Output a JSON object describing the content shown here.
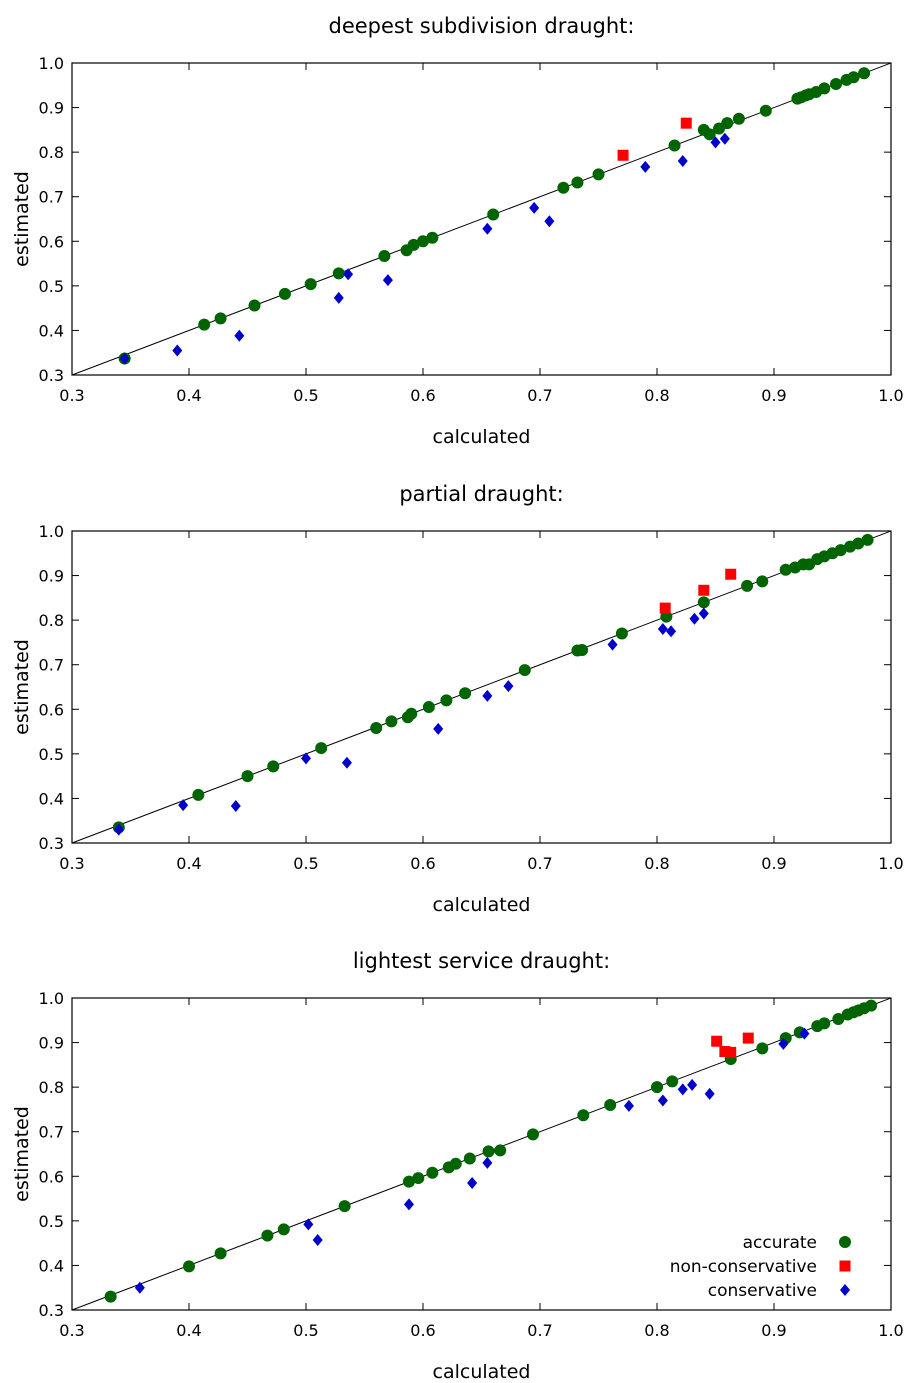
{
  "colors": {
    "accurate": "#006400",
    "non_conservative": "#ff0000",
    "conservative": "#0000cc",
    "axis": "#000000",
    "diagonal": "#000000"
  },
  "chart_data": [
    {
      "type": "scatter",
      "title": "deepest subdivision draught:",
      "xlabel": "calculated",
      "ylabel": "estimated",
      "xlim": [
        0.3,
        1.0
      ],
      "ylim": [
        0.3,
        1.0
      ],
      "xticks": [
        "0.3",
        "0.4",
        "0.5",
        "0.6",
        "0.7",
        "0.8",
        "0.9",
        "1.0"
      ],
      "yticks": [
        "0.3",
        "0.4",
        "0.5",
        "0.6",
        "0.7",
        "0.8",
        "0.9",
        "1.0"
      ],
      "grid": false,
      "reference_line": "y = x",
      "legend": null,
      "series": [
        {
          "key": "accurate",
          "points": [
            [
              0.345,
              0.337
            ],
            [
              0.413,
              0.413
            ],
            [
              0.427,
              0.427
            ],
            [
              0.456,
              0.456
            ],
            [
              0.482,
              0.482
            ],
            [
              0.504,
              0.504
            ],
            [
              0.528,
              0.528
            ],
            [
              0.567,
              0.567
            ],
            [
              0.586,
              0.58
            ],
            [
              0.592,
              0.592
            ],
            [
              0.6,
              0.6
            ],
            [
              0.608,
              0.608
            ],
            [
              0.66,
              0.66
            ],
            [
              0.72,
              0.72
            ],
            [
              0.732,
              0.732
            ],
            [
              0.75,
              0.75
            ],
            [
              0.815,
              0.815
            ],
            [
              0.84,
              0.85
            ],
            [
              0.845,
              0.84
            ],
            [
              0.853,
              0.853
            ],
            [
              0.86,
              0.865
            ],
            [
              0.87,
              0.875
            ],
            [
              0.893,
              0.893
            ],
            [
              0.92,
              0.92
            ],
            [
              0.923,
              0.923
            ],
            [
              0.927,
              0.927
            ],
            [
              0.93,
              0.93
            ],
            [
              0.936,
              0.935
            ],
            [
              0.943,
              0.943
            ],
            [
              0.953,
              0.953
            ],
            [
              0.962,
              0.962
            ],
            [
              0.968,
              0.968
            ],
            [
              0.977,
              0.977
            ]
          ]
        },
        {
          "key": "non_conservative",
          "points": [
            [
              0.771,
              0.793
            ],
            [
              0.825,
              0.865
            ]
          ]
        },
        {
          "key": "conservative",
          "points": [
            [
              0.345,
              0.337
            ],
            [
              0.39,
              0.355
            ],
            [
              0.443,
              0.388
            ],
            [
              0.528,
              0.473
            ],
            [
              0.536,
              0.526
            ],
            [
              0.57,
              0.513
            ],
            [
              0.655,
              0.628
            ],
            [
              0.695,
              0.675
            ],
            [
              0.708,
              0.645
            ],
            [
              0.79,
              0.767
            ],
            [
              0.822,
              0.78
            ],
            [
              0.85,
              0.822
            ],
            [
              0.858,
              0.83
            ]
          ]
        }
      ]
    },
    {
      "type": "scatter",
      "title": "partial draught:",
      "xlabel": "calculated",
      "ylabel": "estimated",
      "xlim": [
        0.3,
        1.0
      ],
      "ylim": [
        0.3,
        1.0
      ],
      "xticks": [
        "0.3",
        "0.4",
        "0.5",
        "0.6",
        "0.7",
        "0.8",
        "0.9",
        "1.0"
      ],
      "yticks": [
        "0.3",
        "0.4",
        "0.5",
        "0.6",
        "0.7",
        "0.8",
        "0.9",
        "1.0"
      ],
      "grid": false,
      "reference_line": "y = x",
      "legend": null,
      "series": [
        {
          "key": "accurate",
          "points": [
            [
              0.34,
              0.335
            ],
            [
              0.408,
              0.408
            ],
            [
              0.45,
              0.45
            ],
            [
              0.472,
              0.472
            ],
            [
              0.513,
              0.513
            ],
            [
              0.56,
              0.558
            ],
            [
              0.573,
              0.573
            ],
            [
              0.587,
              0.582
            ],
            [
              0.59,
              0.59
            ],
            [
              0.605,
              0.605
            ],
            [
              0.62,
              0.62
            ],
            [
              0.636,
              0.636
            ],
            [
              0.687,
              0.688
            ],
            [
              0.732,
              0.732
            ],
            [
              0.736,
              0.733
            ],
            [
              0.77,
              0.77
            ],
            [
              0.808,
              0.808
            ],
            [
              0.84,
              0.84
            ],
            [
              0.877,
              0.877
            ],
            [
              0.89,
              0.887
            ],
            [
              0.91,
              0.913
            ],
            [
              0.918,
              0.918
            ],
            [
              0.925,
              0.925
            ],
            [
              0.93,
              0.925
            ],
            [
              0.937,
              0.937
            ],
            [
              0.943,
              0.943
            ],
            [
              0.95,
              0.95
            ],
            [
              0.957,
              0.957
            ],
            [
              0.965,
              0.965
            ],
            [
              0.972,
              0.972
            ],
            [
              0.98,
              0.98
            ]
          ]
        },
        {
          "key": "non_conservative",
          "points": [
            [
              0.807,
              0.827
            ],
            [
              0.84,
              0.867
            ],
            [
              0.863,
              0.903
            ]
          ]
        },
        {
          "key": "conservative",
          "points": [
            [
              0.34,
              0.33
            ],
            [
              0.395,
              0.385
            ],
            [
              0.44,
              0.383
            ],
            [
              0.5,
              0.49
            ],
            [
              0.535,
              0.48
            ],
            [
              0.613,
              0.556
            ],
            [
              0.655,
              0.63
            ],
            [
              0.673,
              0.652
            ],
            [
              0.762,
              0.745
            ],
            [
              0.805,
              0.78
            ],
            [
              0.812,
              0.775
            ],
            [
              0.832,
              0.803
            ],
            [
              0.84,
              0.815
            ]
          ]
        }
      ]
    },
    {
      "type": "scatter",
      "title": "lightest service draught:",
      "xlabel": "calculated",
      "ylabel": "estimated",
      "xlim": [
        0.3,
        1.0
      ],
      "ylim": [
        0.3,
        1.0
      ],
      "xticks": [
        "0.3",
        "0.4",
        "0.5",
        "0.6",
        "0.7",
        "0.8",
        "0.9",
        "1.0"
      ],
      "yticks": [
        "0.3",
        "0.4",
        "0.5",
        "0.6",
        "0.7",
        "0.8",
        "0.9",
        "1.0"
      ],
      "grid": false,
      "reference_line": "y = x",
      "legend": {
        "placement": "bottom-right",
        "entries": [
          {
            "key": "accurate",
            "label": "accurate"
          },
          {
            "key": "non_conservative",
            "label": "non-conservative"
          },
          {
            "key": "conservative",
            "label": "conservative"
          }
        ]
      },
      "series": [
        {
          "key": "accurate",
          "points": [
            [
              0.333,
              0.33
            ],
            [
              0.4,
              0.398
            ],
            [
              0.427,
              0.427
            ],
            [
              0.467,
              0.467
            ],
            [
              0.481,
              0.481
            ],
            [
              0.533,
              0.533
            ],
            [
              0.588,
              0.588
            ],
            [
              0.596,
              0.596
            ],
            [
              0.608,
              0.608
            ],
            [
              0.622,
              0.62
            ],
            [
              0.628,
              0.628
            ],
            [
              0.64,
              0.64
            ],
            [
              0.656,
              0.656
            ],
            [
              0.666,
              0.658
            ],
            [
              0.694,
              0.694
            ],
            [
              0.737,
              0.737
            ],
            [
              0.76,
              0.76
            ],
            [
              0.8,
              0.8
            ],
            [
              0.813,
              0.813
            ],
            [
              0.863,
              0.863
            ],
            [
              0.89,
              0.887
            ],
            [
              0.91,
              0.91
            ],
            [
              0.922,
              0.923
            ],
            [
              0.937,
              0.937
            ],
            [
              0.943,
              0.943
            ],
            [
              0.955,
              0.953
            ],
            [
              0.963,
              0.963
            ],
            [
              0.968,
              0.968
            ],
            [
              0.972,
              0.972
            ],
            [
              0.977,
              0.977
            ],
            [
              0.983,
              0.983
            ]
          ]
        },
        {
          "key": "non_conservative",
          "points": [
            [
              0.851,
              0.903
            ],
            [
              0.858,
              0.88
            ],
            [
              0.863,
              0.878
            ],
            [
              0.878,
              0.91
            ]
          ]
        },
        {
          "key": "conservative",
          "points": [
            [
              0.358,
              0.35
            ],
            [
              0.502,
              0.492
            ],
            [
              0.51,
              0.457
            ],
            [
              0.588,
              0.537
            ],
            [
              0.642,
              0.585
            ],
            [
              0.655,
              0.63
            ],
            [
              0.776,
              0.758
            ],
            [
              0.805,
              0.77
            ],
            [
              0.822,
              0.795
            ],
            [
              0.83,
              0.805
            ],
            [
              0.845,
              0.785
            ],
            [
              0.908,
              0.897
            ],
            [
              0.926,
              0.92
            ]
          ]
        }
      ]
    }
  ]
}
